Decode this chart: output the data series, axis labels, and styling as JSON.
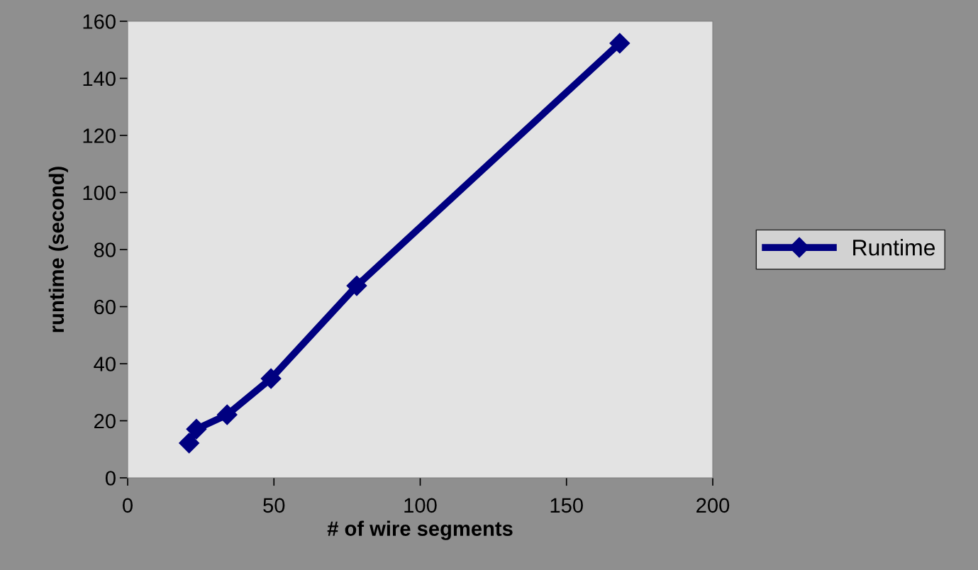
{
  "chart_data": {
    "type": "line",
    "xlabel": "# of wire segments",
    "ylabel": "runtime (second)",
    "x": [
      21,
      23.5,
      34,
      49,
      78.3,
      168.2
    ],
    "series": [
      {
        "name": "Runtime",
        "color": "#000080",
        "values": [
          12.2,
          17.1,
          22.1,
          34.8,
          67.3,
          152.3
        ]
      }
    ],
    "xlim": [
      0,
      200
    ],
    "xticks": [
      0,
      50,
      100,
      150,
      200
    ],
    "ylim": [
      0,
      160
    ],
    "yticks": [
      0,
      20,
      40,
      60,
      80,
      100,
      120,
      140,
      160
    ],
    "marker": "diamond",
    "line_style": "solid",
    "grid": false,
    "legend": "right"
  }
}
